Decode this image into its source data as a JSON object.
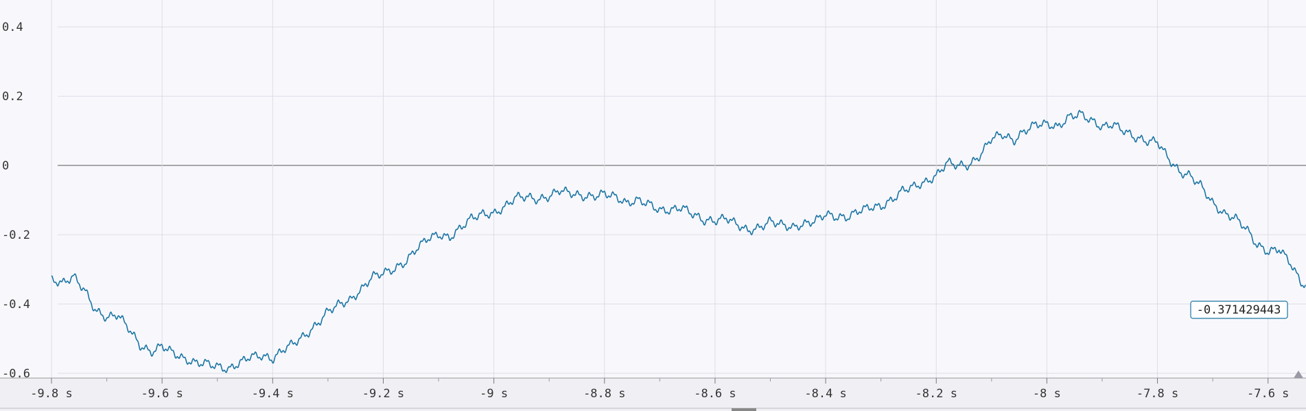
{
  "colors": {
    "background": "#f8f8fc",
    "grid": "#dcdce6",
    "zero_line": "#8c8c8c",
    "series": "#1a74a3",
    "readout_border": "#1a74a3"
  },
  "readout": {
    "value": "-0.371429443"
  },
  "chart_data": {
    "type": "line",
    "title": "",
    "xlabel": "",
    "ylabel": "",
    "xlim": [
      -9.8,
      -7.55
    ],
    "ylim": [
      -0.6,
      0.45
    ],
    "grid": true,
    "legend": "none",
    "x_ticks": [
      {
        "value": -9.8,
        "label": "-9.8 s"
      },
      {
        "value": -9.6,
        "label": "-9.6 s"
      },
      {
        "value": -9.4,
        "label": "-9.4 s"
      },
      {
        "value": -9.2,
        "label": "-9.2 s"
      },
      {
        "value": -9.0,
        "label": "-9 s"
      },
      {
        "value": -8.8,
        "label": "-8.8 s"
      },
      {
        "value": -8.6,
        "label": "-8.6 s"
      },
      {
        "value": -8.4,
        "label": "-8.4 s"
      },
      {
        "value": -8.2,
        "label": "-8.2 s"
      },
      {
        "value": -8.0,
        "label": "-8 s"
      },
      {
        "value": -7.8,
        "label": "-7.8 s"
      },
      {
        "value": -7.6,
        "label": "-7.6 s"
      }
    ],
    "y_ticks": [
      {
        "value": 0.4,
        "label": "0.4"
      },
      {
        "value": 0.2,
        "label": "0.2"
      },
      {
        "value": 0.0,
        "label": "0"
      },
      {
        "value": -0.2,
        "label": "-0.2"
      },
      {
        "value": -0.4,
        "label": "-0.4"
      },
      {
        "value": -0.6,
        "label": "-0.6"
      }
    ],
    "series": [
      {
        "points": [
          [
            -9.8,
            -0.33
          ],
          [
            -9.78,
            -0.34
          ],
          [
            -9.76,
            -0.32
          ],
          [
            -9.74,
            -0.36
          ],
          [
            -9.72,
            -0.42
          ],
          [
            -9.7,
            -0.44
          ],
          [
            -9.68,
            -0.43
          ],
          [
            -9.66,
            -0.47
          ],
          [
            -9.64,
            -0.52
          ],
          [
            -9.62,
            -0.54
          ],
          [
            -9.6,
            -0.52
          ],
          [
            -9.58,
            -0.54
          ],
          [
            -9.56,
            -0.56
          ],
          [
            -9.54,
            -0.57
          ],
          [
            -9.52,
            -0.57
          ],
          [
            -9.5,
            -0.58
          ],
          [
            -9.48,
            -0.59
          ],
          [
            -9.46,
            -0.57
          ],
          [
            -9.44,
            -0.55
          ],
          [
            -9.42,
            -0.55
          ],
          [
            -9.4,
            -0.56
          ],
          [
            -9.38,
            -0.53
          ],
          [
            -9.36,
            -0.51
          ],
          [
            -9.34,
            -0.49
          ],
          [
            -9.32,
            -0.46
          ],
          [
            -9.3,
            -0.42
          ],
          [
            -9.28,
            -0.4
          ],
          [
            -9.26,
            -0.39
          ],
          [
            -9.24,
            -0.36
          ],
          [
            -9.22,
            -0.32
          ],
          [
            -9.2,
            -0.31
          ],
          [
            -9.18,
            -0.3
          ],
          [
            -9.16,
            -0.28
          ],
          [
            -9.14,
            -0.24
          ],
          [
            -9.12,
            -0.21
          ],
          [
            -9.1,
            -0.2
          ],
          [
            -9.08,
            -0.21
          ],
          [
            -9.06,
            -0.18
          ],
          [
            -9.04,
            -0.15
          ],
          [
            -9.02,
            -0.14
          ],
          [
            -9.0,
            -0.14
          ],
          [
            -8.98,
            -0.12
          ],
          [
            -8.96,
            -0.09
          ],
          [
            -8.94,
            -0.09
          ],
          [
            -8.92,
            -0.1
          ],
          [
            -8.9,
            -0.09
          ],
          [
            -8.88,
            -0.07
          ],
          [
            -8.86,
            -0.08
          ],
          [
            -8.84,
            -0.09
          ],
          [
            -8.82,
            -0.09
          ],
          [
            -8.8,
            -0.08
          ],
          [
            -8.78,
            -0.09
          ],
          [
            -8.76,
            -0.11
          ],
          [
            -8.74,
            -0.1
          ],
          [
            -8.72,
            -0.11
          ],
          [
            -8.7,
            -0.13
          ],
          [
            -8.68,
            -0.13
          ],
          [
            -8.66,
            -0.12
          ],
          [
            -8.64,
            -0.14
          ],
          [
            -8.62,
            -0.16
          ],
          [
            -8.6,
            -0.16
          ],
          [
            -8.58,
            -0.15
          ],
          [
            -8.56,
            -0.17
          ],
          [
            -8.54,
            -0.19
          ],
          [
            -8.52,
            -0.18
          ],
          [
            -8.5,
            -0.16
          ],
          [
            -8.48,
            -0.17
          ],
          [
            -8.46,
            -0.18
          ],
          [
            -8.44,
            -0.17
          ],
          [
            -8.42,
            -0.16
          ],
          [
            -8.4,
            -0.14
          ],
          [
            -8.38,
            -0.15
          ],
          [
            -8.36,
            -0.15
          ],
          [
            -8.34,
            -0.13
          ],
          [
            -8.32,
            -0.12
          ],
          [
            -8.3,
            -0.12
          ],
          [
            -8.28,
            -0.1
          ],
          [
            -8.26,
            -0.07
          ],
          [
            -8.24,
            -0.06
          ],
          [
            -8.22,
            -0.05
          ],
          [
            -8.2,
            -0.03
          ],
          [
            -8.18,
            0.01
          ],
          [
            -8.16,
            0.0
          ],
          [
            -8.14,
            0.0
          ],
          [
            -8.12,
            0.03
          ],
          [
            -8.1,
            0.08
          ],
          [
            -8.08,
            0.09
          ],
          [
            -8.06,
            0.07
          ],
          [
            -8.04,
            0.1
          ],
          [
            -8.02,
            0.12
          ],
          [
            -8.0,
            0.12
          ],
          [
            -7.98,
            0.11
          ],
          [
            -7.96,
            0.14
          ],
          [
            -7.94,
            0.15
          ],
          [
            -7.92,
            0.13
          ],
          [
            -7.9,
            0.11
          ],
          [
            -7.88,
            0.12
          ],
          [
            -7.86,
            0.1
          ],
          [
            -7.84,
            0.08
          ],
          [
            -7.82,
            0.07
          ],
          [
            -7.8,
            0.07
          ],
          [
            -7.78,
            0.02
          ],
          [
            -7.76,
            -0.02
          ],
          [
            -7.74,
            -0.03
          ],
          [
            -7.72,
            -0.06
          ],
          [
            -7.7,
            -0.11
          ],
          [
            -7.68,
            -0.14
          ],
          [
            -7.66,
            -0.15
          ],
          [
            -7.64,
            -0.18
          ],
          [
            -7.62,
            -0.23
          ],
          [
            -7.6,
            -0.25
          ],
          [
            -7.58,
            -0.24
          ],
          [
            -7.56,
            -0.28
          ],
          [
            -7.54,
            -0.34
          ],
          [
            -7.52,
            -0.35
          ],
          [
            -7.5,
            -0.34
          ],
          [
            -7.48,
            -0.37
          ]
        ]
      }
    ]
  }
}
